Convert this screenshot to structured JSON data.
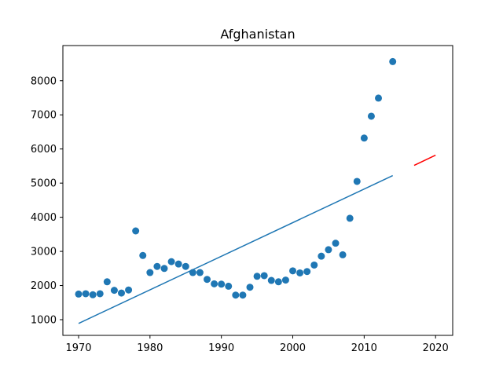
{
  "chart_data": {
    "type": "scatter",
    "title": "Afghanistan",
    "xlabel": "",
    "ylabel": "",
    "xlim": [
      1967.8,
      2022.4
    ],
    "ylim": [
      540,
      9030
    ],
    "x_ticks": [
      1970,
      1980,
      1990,
      2000,
      2010,
      2020
    ],
    "y_ticks": [
      1000,
      2000,
      3000,
      4000,
      5000,
      6000,
      7000,
      8000
    ],
    "grid": false,
    "legend": "none",
    "series": [
      {
        "kind": "scatter",
        "color": "#1f77b4",
        "x": [
          1970,
          1971,
          1972,
          1973,
          1974,
          1975,
          1976,
          1977,
          1978,
          1979,
          1980,
          1981,
          1982,
          1983,
          1984,
          1985,
          1986,
          1987,
          1988,
          1989,
          1990,
          1991,
          1992,
          1993,
          1994,
          1995,
          1996,
          1997,
          1998,
          1999,
          2000,
          2001,
          2002,
          2003,
          2004,
          2005,
          2006,
          2007,
          2008,
          2009,
          2010,
          2011,
          2012,
          2014
        ],
        "y": [
          1750,
          1760,
          1730,
          1760,
          2110,
          1860,
          1780,
          1870,
          3600,
          2880,
          2380,
          2560,
          2500,
          2700,
          2630,
          2560,
          2380,
          2380,
          2180,
          2050,
          2040,
          1980,
          1720,
          1720,
          1950,
          2270,
          2290,
          2150,
          2110,
          2160,
          2430,
          2370,
          2410,
          2600,
          2860,
          3050,
          3240,
          2900,
          3970,
          5050,
          6320,
          6960,
          7490,
          8560
        ]
      },
      {
        "kind": "line",
        "color": "#1f77b4",
        "x": [
          1970,
          2014
        ],
        "y": [
          890,
          5220
        ]
      },
      {
        "kind": "line",
        "color": "#ff0000",
        "x": [
          2017,
          2020
        ],
        "y": [
          5520,
          5820
        ]
      }
    ]
  }
}
